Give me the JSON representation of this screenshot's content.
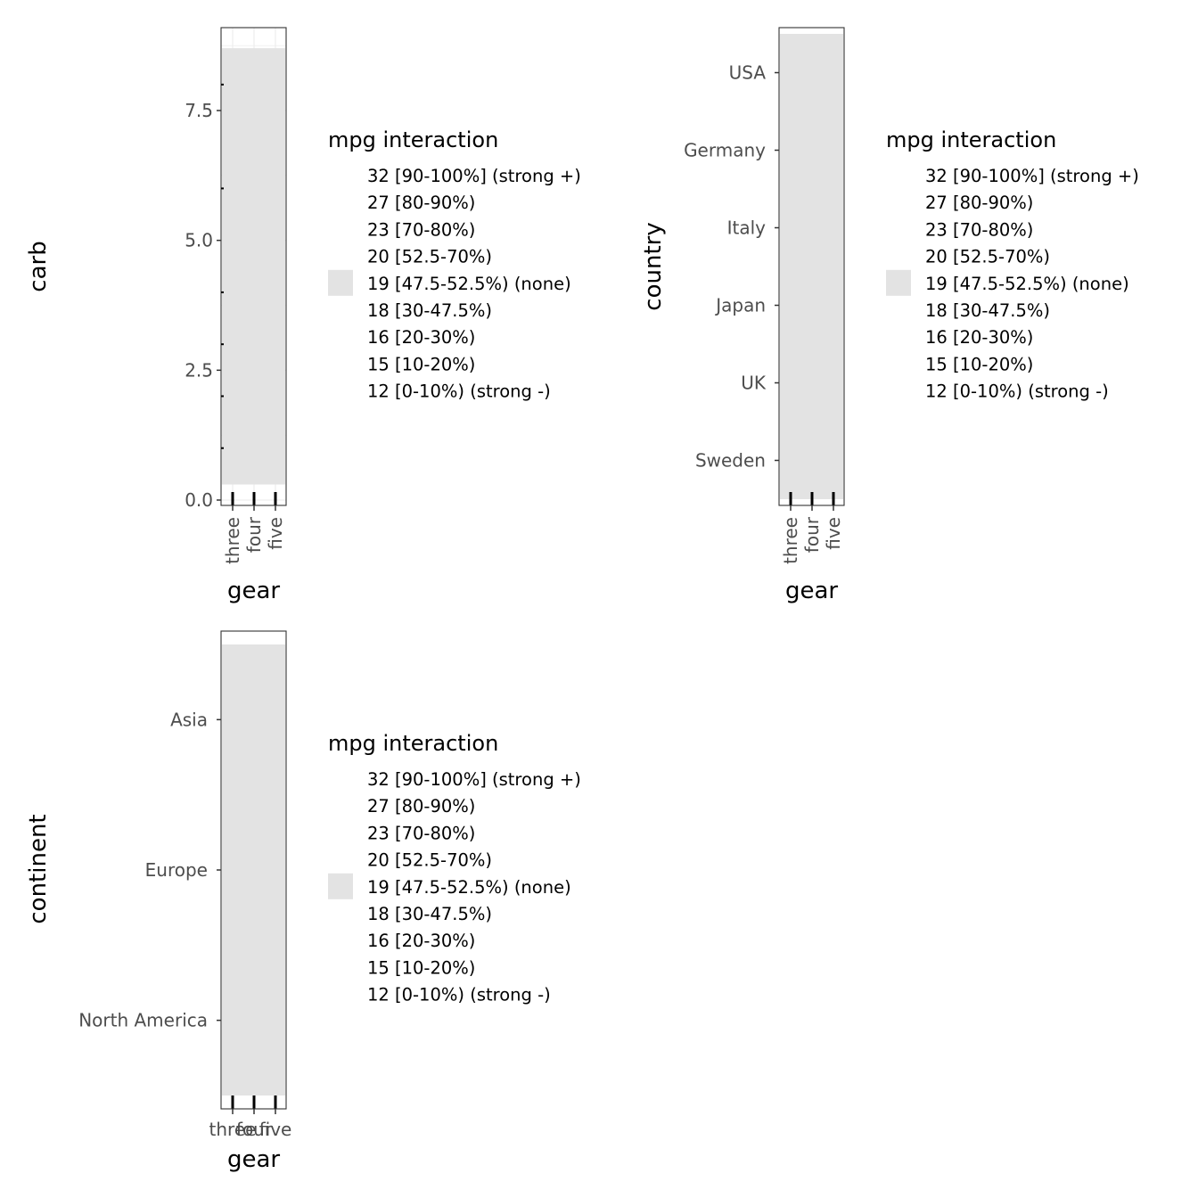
{
  "charts": [
    {
      "type": "heatmap",
      "xlabel": "gear",
      "ylabel": "carb",
      "x_categories": [
        "three",
        "four",
        "five"
      ],
      "y_axis": "continuous",
      "y_ticks": [
        {
          "value": 0,
          "label": "0.0"
        },
        {
          "value": 2.5,
          "label": "2.5"
        },
        {
          "value": 5,
          "label": "5.0"
        },
        {
          "value": 7.5,
          "label": "7.5"
        }
      ],
      "ylim": [
        0,
        9
      ],
      "tile_extent": [
        0.3,
        8.7
      ],
      "fill_color": "#e3e3e3",
      "grid": true,
      "legend_position": "right"
    },
    {
      "type": "heatmap",
      "xlabel": "gear",
      "ylabel": "country",
      "x_categories": [
        "three",
        "four",
        "five"
      ],
      "y_axis": "discrete",
      "y_categories": [
        "Sweden",
        "UK",
        "Japan",
        "Italy",
        "Germany",
        "USA"
      ],
      "fill_color": "#e3e3e3",
      "grid": false,
      "legend_position": "right"
    },
    {
      "type": "heatmap",
      "xlabel": "gear",
      "ylabel": "continent",
      "x_categories": [
        "three",
        "four",
        "five"
      ],
      "y_axis": "discrete",
      "y_categories": [
        "North America",
        "Europe",
        "Asia"
      ],
      "fill_color": "#e3e3e3",
      "grid": false,
      "legend_position": "right"
    }
  ],
  "legend": {
    "title": "mpg interaction",
    "items": [
      {
        "label": "32 [90-100%] (strong +)",
        "color": null
      },
      {
        "label": "27 [80-90%)",
        "color": null
      },
      {
        "label": "23 [70-80%)",
        "color": null
      },
      {
        "label": "20 [52.5-70%)",
        "color": null
      },
      {
        "label": "19 [47.5-52.5%) (none)",
        "color": "#e3e3e3"
      },
      {
        "label": "18 [30-47.5%)",
        "color": null
      },
      {
        "label": "16 [20-30%)",
        "color": null
      },
      {
        "label": "15 [10-20%)",
        "color": null
      },
      {
        "label": "12 [0-10%) (strong -)",
        "color": null
      }
    ]
  }
}
